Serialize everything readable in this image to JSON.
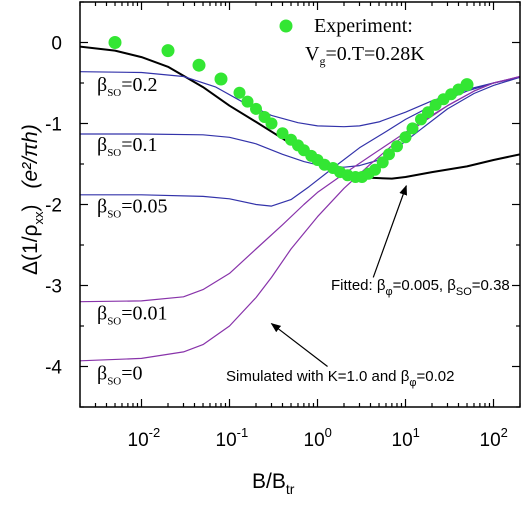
{
  "chart_data": {
    "type": "scatter",
    "x_scale": "log",
    "xlim": [
      0.002,
      200
    ],
    "ylim": [
      -4.5,
      0.5
    ],
    "x_ticks": [
      0.01,
      0.1,
      1,
      10,
      100
    ],
    "x_tick_labels": [
      {
        "base": "10",
        "exp": "-2"
      },
      {
        "base": "10",
        "exp": "-1"
      },
      {
        "base": "10",
        "exp": "0"
      },
      {
        "base": "10",
        "exp": "1"
      },
      {
        "base": "10",
        "exp": "2"
      }
    ],
    "y_ticks": [
      0,
      -1,
      -2,
      -3,
      -4
    ],
    "y_tick_labels": [
      "0",
      "-1",
      "-2",
      "-3",
      "-4"
    ],
    "xlabel": {
      "main": "B/B",
      "sub": "tr"
    },
    "ylabel": {
      "pre": "Δ(1/ρ",
      "sub": "xx",
      "post": ")",
      "units": "(e²/πh)"
    },
    "legend": {
      "label": "Experiment:",
      "line2_v": "V",
      "line2_sub": "g",
      "line2_rest": "=0.T=0.28K",
      "color": "#33e633",
      "position": "top-right"
    },
    "experiment": {
      "color": "#33e633",
      "x": [
        0.005,
        0.02,
        0.045,
        0.08,
        0.13,
        0.16,
        0.2,
        0.25,
        0.3,
        0.4,
        0.5,
        0.6,
        0.7,
        0.85,
        1.0,
        1.2,
        1.5,
        1.8,
        2.2,
        2.7,
        3.2,
        3.8,
        4.5,
        5.5,
        6.5,
        8,
        10,
        12,
        15,
        18,
        22,
        27,
        33,
        40,
        50
      ],
      "y": [
        0.0,
        -0.1,
        -0.28,
        -0.45,
        -0.62,
        -0.73,
        -0.82,
        -0.92,
        -1.0,
        -1.12,
        -1.2,
        -1.27,
        -1.33,
        -1.4,
        -1.45,
        -1.51,
        -1.55,
        -1.6,
        -1.64,
        -1.66,
        -1.66,
        -1.62,
        -1.57,
        -1.48,
        -1.38,
        -1.28,
        -1.17,
        -1.06,
        -0.95,
        -0.86,
        -0.77,
        -0.7,
        -0.64,
        -0.58,
        -0.52
      ]
    },
    "series": [
      {
        "color": "#000000",
        "style": "fit",
        "width": 2,
        "x": [
          0.002,
          0.005,
          0.01,
          0.02,
          0.05,
          0.1,
          0.2,
          0.5,
          1,
          2,
          4,
          7,
          10,
          20,
          50,
          100,
          200
        ],
        "y": [
          -0.05,
          -0.1,
          -0.18,
          -0.3,
          -0.55,
          -0.78,
          -0.98,
          -1.25,
          -1.45,
          -1.6,
          -1.67,
          -1.68,
          -1.66,
          -1.6,
          -1.53,
          -1.45,
          -1.38
        ]
      },
      {
        "color": "#3333aa",
        "width": 1.2,
        "x": [
          0.002,
          0.01,
          0.03,
          0.07,
          0.15,
          0.3,
          0.6,
          1,
          2,
          3,
          5,
          10,
          20,
          50,
          100,
          200
        ],
        "y": [
          -0.36,
          -0.37,
          -0.42,
          -0.55,
          -0.75,
          -0.9,
          -0.99,
          -1.03,
          -1.04,
          -1.03,
          -0.98,
          -0.86,
          -0.72,
          -0.58,
          -0.5,
          -0.43
        ]
      },
      {
        "color": "#3333aa",
        "width": 1.2,
        "x": [
          0.002,
          0.01,
          0.05,
          0.1,
          0.2,
          0.4,
          0.7,
          1,
          2,
          3,
          5,
          8,
          15,
          30,
          60,
          100,
          200
        ],
        "y": [
          -1.13,
          -1.13,
          -1.14,
          -1.17,
          -1.25,
          -1.38,
          -1.47,
          -1.51,
          -1.54,
          -1.52,
          -1.45,
          -1.3,
          -1.07,
          -0.82,
          -0.63,
          -0.53,
          -0.43
        ]
      },
      {
        "color": "#3333aa",
        "width": 1.2,
        "x": [
          0.002,
          0.01,
          0.05,
          0.1,
          0.2,
          0.3,
          0.5,
          0.8,
          1.5,
          3,
          6,
          10,
          20,
          50,
          100,
          200
        ],
        "y": [
          -1.88,
          -1.88,
          -1.9,
          -1.93,
          -2.0,
          -2.02,
          -1.94,
          -1.78,
          -1.55,
          -1.3,
          -1.1,
          -0.95,
          -0.78,
          -0.6,
          -0.5,
          -0.43
        ]
      },
      {
        "color": "#8833aa",
        "width": 1.2,
        "x": [
          0.002,
          0.01,
          0.03,
          0.05,
          0.1,
          0.2,
          0.4,
          0.7,
          1,
          2,
          4,
          8,
          15,
          30,
          60,
          100,
          200
        ],
        "y": [
          -3.2,
          -3.19,
          -3.14,
          -3.05,
          -2.85,
          -2.55,
          -2.25,
          -2.0,
          -1.85,
          -1.62,
          -1.4,
          -1.18,
          -0.98,
          -0.78,
          -0.6,
          -0.5,
          -0.42
        ]
      },
      {
        "color": "#8833aa",
        "width": 1.2,
        "x": [
          0.002,
          0.01,
          0.03,
          0.05,
          0.1,
          0.2,
          0.3,
          0.5,
          1,
          2,
          4,
          8,
          15,
          30,
          60,
          100,
          200
        ],
        "y": [
          -3.93,
          -3.9,
          -3.82,
          -3.73,
          -3.5,
          -3.15,
          -2.9,
          -2.55,
          -2.15,
          -1.8,
          -1.5,
          -1.22,
          -1.0,
          -0.78,
          -0.6,
          -0.5,
          -0.42
        ]
      }
    ],
    "curve_labels": [
      {
        "pre": "β",
        "sub": "SO",
        "post": "=0.2",
        "anchor_y": -0.6
      },
      {
        "pre": "β",
        "sub": "SO",
        "post": "=0.1",
        "anchor_y": -1.34
      },
      {
        "pre": "β",
        "sub": "SO",
        "post": "=0.05",
        "anchor_y": -2.1
      },
      {
        "pre": "β",
        "sub": "SO",
        "post": "=0.01",
        "anchor_y": -3.42
      },
      {
        "pre": "β",
        "sub": "SO",
        "post": "=0",
        "anchor_y": -4.16
      }
    ],
    "annotations": {
      "fitted": {
        "text1": "Fitted: β",
        "sub1": "φ",
        "text2": "=0.005, β",
        "sub2": "SO",
        "text3": "=0.38",
        "arrow_from": [
          4.3,
          -2.9
        ],
        "arrow_to": [
          10.2,
          -1.77
        ]
      },
      "simulated": {
        "text1": "Simulated with K=1.0 and  β",
        "sub1": "φ",
        "text2": "=0.02",
        "arrow_from": [
          1.3,
          -4.0
        ],
        "arrow_to": [
          0.3,
          -3.47
        ]
      }
    }
  }
}
